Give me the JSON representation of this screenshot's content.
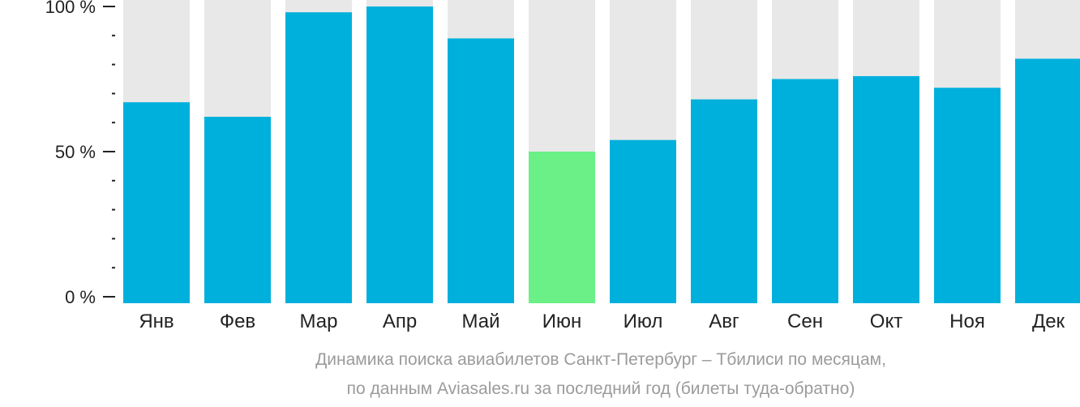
{
  "chart_data": {
    "type": "bar",
    "categories": [
      "Янв",
      "Фев",
      "Мар",
      "Апр",
      "Май",
      "Июн",
      "Июл",
      "Авг",
      "Сен",
      "Окт",
      "Ноя",
      "Дек"
    ],
    "values": [
      67,
      62,
      98,
      100,
      89,
      50,
      54,
      68,
      75,
      76,
      72,
      82
    ],
    "highlight_index": 5,
    "ylim": [
      0,
      100
    ],
    "y_ticks": [
      0,
      50,
      100
    ],
    "y_tick_labels": [
      "0 %",
      "50 %",
      "100 %"
    ],
    "y_minor_step": 10,
    "title": "",
    "xlabel": "",
    "ylabel": "",
    "grid": false,
    "legend": "none"
  },
  "caption": {
    "line1": "Динамика поиска авиабилетов Санкт-Петербург – Тбилиси по месяцам,",
    "line2": "по данным Aviasales.ru за последний год (билеты туда-обратно)"
  },
  "colors": {
    "bar": "#00b0dc",
    "bar_highlight": "#6af086",
    "track": "#e8e8e8",
    "axis": "#222222",
    "caption": "#9b9b9b"
  }
}
